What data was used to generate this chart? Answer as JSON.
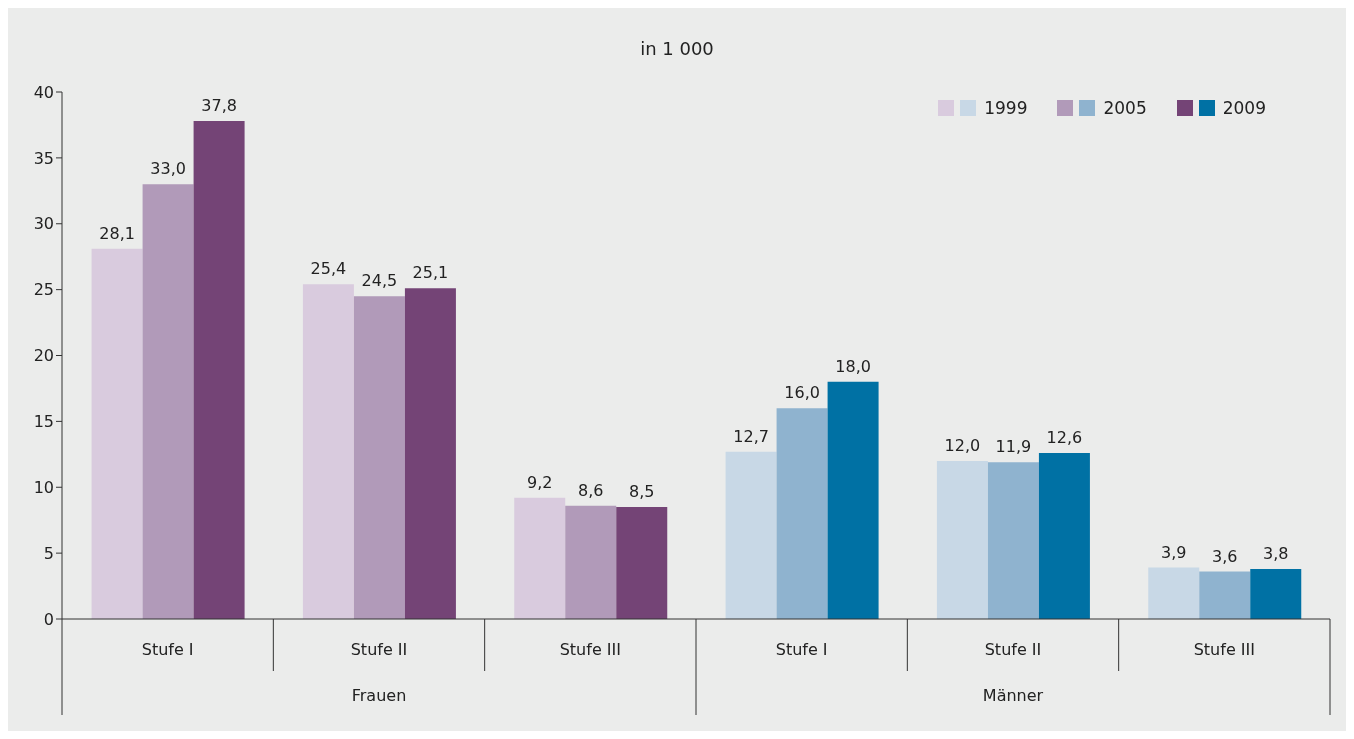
{
  "chart_data": {
    "type": "bar",
    "title": "in 1 000",
    "categories": [
      "Stufe I",
      "Stufe II",
      "Stufe III",
      "Stufe I",
      "Stufe II",
      "Stufe III"
    ],
    "annotations": [
      "Frauen",
      "Männer"
    ],
    "series": [
      {
        "name": "1999",
        "colors": [
          "#d9cbde",
          "#d9cbde",
          "#d9cbde",
          "#c8d8e6",
          "#c8d8e6",
          "#c8d8e6"
        ],
        "values": [
          28.1,
          25.4,
          9.2,
          12.7,
          12.0,
          3.9
        ],
        "value_labels": [
          "28,1",
          "25,4",
          "9,2",
          "12,7",
          "12,0",
          "3,9"
        ]
      },
      {
        "name": "2005",
        "colors": [
          "#b19ab9",
          "#b19ab9",
          "#b19ab9",
          "#8fb3cf",
          "#8fb3cf",
          "#8fb3cf"
        ],
        "values": [
          33.0,
          24.5,
          8.6,
          16.0,
          11.9,
          3.6
        ],
        "value_labels": [
          "33,0",
          "24,5",
          "8,6",
          "16,0",
          "11,9",
          "3,6"
        ]
      },
      {
        "name": "2009",
        "colors": [
          "#744476",
          "#744476",
          "#744476",
          "#0071a4",
          "#0071a4",
          "#0071a4"
        ],
        "values": [
          37.8,
          25.1,
          8.5,
          18.0,
          12.6,
          3.8
        ],
        "value_labels": [
          "37,8",
          "25,1",
          "8,5",
          "18,0",
          "12,6",
          "3,8"
        ]
      }
    ],
    "ylim": [
      0,
      40
    ],
    "yticks": [
      0,
      5,
      10,
      15,
      20,
      25,
      30,
      35,
      40
    ],
    "grid": false,
    "legend": "top right"
  }
}
